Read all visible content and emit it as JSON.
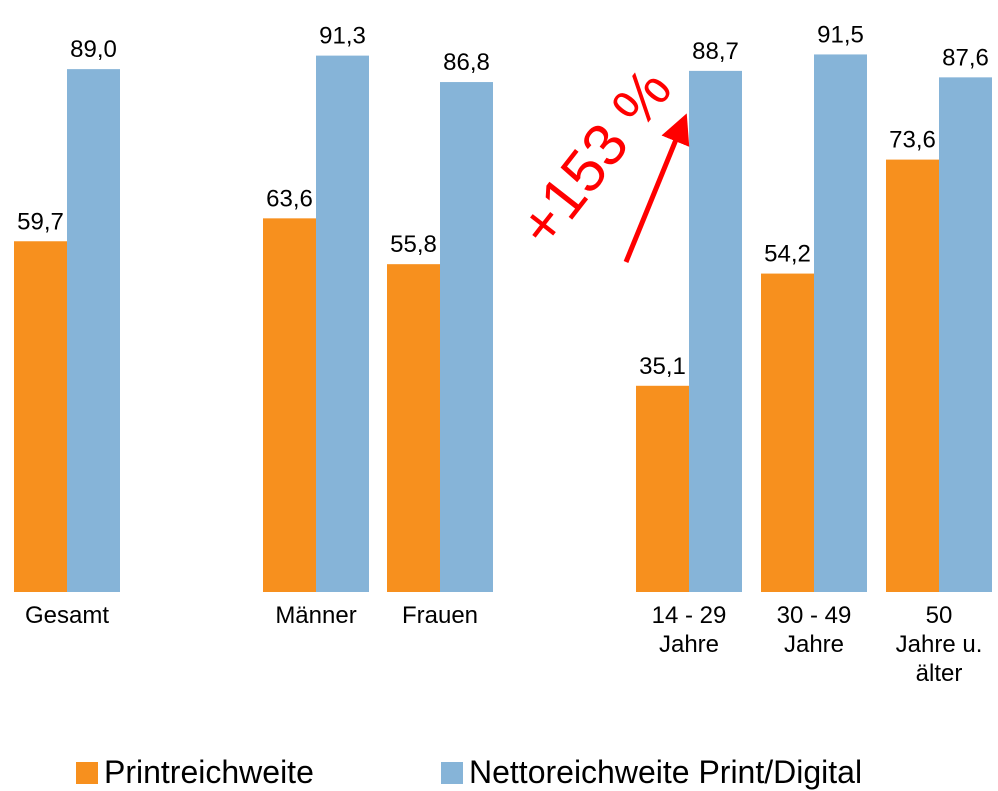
{
  "chart_data": {
    "type": "bar",
    "categories": [
      [
        "Gesamt"
      ],
      [
        "Männer"
      ],
      [
        "Frauen"
      ],
      [
        "14 - 29",
        "Jahre"
      ],
      [
        "30 - 49",
        "Jahre"
      ],
      [
        "50",
        "Jahre u.",
        "älter"
      ]
    ],
    "series": [
      {
        "name": "Printreichweite",
        "color": "#F7901E",
        "values": [
          59.7,
          63.6,
          55.8,
          35.1,
          54.2,
          73.6
        ]
      },
      {
        "name": "Nettoreichweite Print/Digital",
        "color": "#86B4D8",
        "values": [
          89.0,
          91.3,
          86.8,
          88.7,
          91.5,
          87.6
        ]
      }
    ],
    "value_labels": [
      [
        "59,7",
        "63,6",
        "55,8",
        "35,1",
        "54,2",
        "73,6"
      ],
      [
        "89,0",
        "91,3",
        "86,8",
        "88,7",
        "91,5",
        "87,6"
      ]
    ],
    "ylim": [
      0,
      100
    ],
    "grid": false,
    "legend_position": "bottom",
    "annotation": {
      "text": "+153 %",
      "color": "#FF0000",
      "arrow": true
    }
  }
}
